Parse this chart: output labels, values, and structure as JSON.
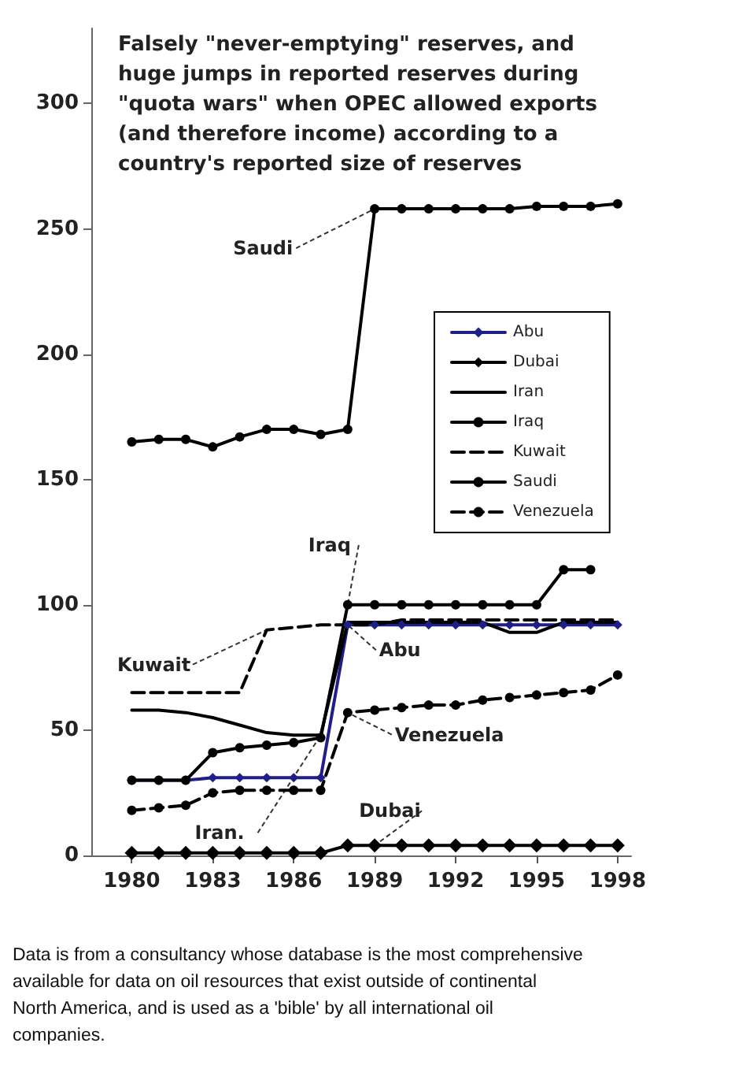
{
  "chart_data": {
    "type": "line",
    "title": "Falsely \"never-emptying\" reserves, and huge jumps in reported reserves during \"quota wars\" when OPEC allowed exports (and therefore income) according to a country's reported size of reserves",
    "x": [
      1980,
      1981,
      1982,
      1983,
      1984,
      1985,
      1986,
      1987,
      1988,
      1989,
      1990,
      1991,
      1992,
      1993,
      1994,
      1995,
      1996,
      1997,
      1998
    ],
    "series": [
      {
        "name": "Abu",
        "color": "#1f1f8a",
        "marker": "diamond",
        "values": [
          30,
          30,
          30,
          31,
          31,
          31,
          31,
          31,
          92,
          92,
          92,
          92,
          92,
          92,
          92,
          92,
          92,
          92,
          92
        ]
      },
      {
        "name": "Dubai",
        "color": "#000000",
        "marker": "diamond",
        "values": [
          1,
          1,
          1,
          1,
          1,
          1,
          1,
          1,
          4,
          4,
          4,
          4,
          4,
          4,
          4,
          4,
          4,
          4,
          4
        ]
      },
      {
        "name": "Iran",
        "color": "#000000",
        "marker": "none",
        "values": [
          58,
          58,
          57,
          55,
          52,
          49,
          48,
          48,
          93,
          93,
          93,
          93,
          93,
          93,
          89,
          89,
          93,
          93,
          93
        ]
      },
      {
        "name": "Iraq",
        "color": "#000000",
        "marker": "circle",
        "values": [
          30,
          30,
          30,
          41,
          43,
          44,
          45,
          47,
          100,
          100,
          100,
          100,
          100,
          100,
          100,
          100,
          114,
          114,
          null
        ]
      },
      {
        "name": "Kuwait",
        "color": "#000000",
        "marker": "none",
        "line_style": "dashed",
        "values": [
          65,
          65,
          65,
          65,
          65,
          90,
          91,
          92,
          92,
          92,
          94,
          94,
          94,
          94,
          94,
          94,
          94,
          94,
          94
        ]
      },
      {
        "name": "Saudi",
        "color": "#000000",
        "marker": "circle",
        "values": [
          165,
          166,
          166,
          163,
          167,
          170,
          170,
          168,
          170,
          258,
          258,
          258,
          258,
          258,
          258,
          259,
          259,
          259,
          260
        ]
      },
      {
        "name": "Venezuela",
        "color": "#000000",
        "marker": "circle",
        "line_style": "dashed",
        "values": [
          18,
          19,
          20,
          25,
          26,
          26,
          26,
          26,
          57,
          58,
          59,
          60,
          60,
          62,
          63,
          64,
          65,
          66,
          72
        ]
      }
    ],
    "xlim": [
      1978.5,
      1998.5
    ],
    "xticks": [
      1980,
      1983,
      1986,
      1989,
      1992,
      1995,
      1998
    ],
    "ylim": [
      0,
      330
    ],
    "yticks": [
      0,
      50,
      100,
      150,
      200,
      250,
      300
    ],
    "grid": false,
    "legend": "top right",
    "annotations": [
      {
        "text": "Saudi",
        "x": 1989,
        "y": 258
      },
      {
        "text": "Iraq",
        "x": 1988,
        "y": 100
      },
      {
        "text": "Kuwait",
        "x": 1985,
        "y": 90
      },
      {
        "text": "Abu",
        "x": 1988,
        "y": 92
      },
      {
        "text": "Iran.",
        "x": 1987,
        "y": 48
      },
      {
        "text": "Venezuela",
        "x": 1988,
        "y": 57
      },
      {
        "text": "Dubai",
        "x": 1989,
        "y": 4
      },
      "Data is from a consultancy whose database is the most comprehensive available for data on oil resources that exist outside of continental North America, and is used as a 'bible' by all international oil companies."
    ]
  }
}
